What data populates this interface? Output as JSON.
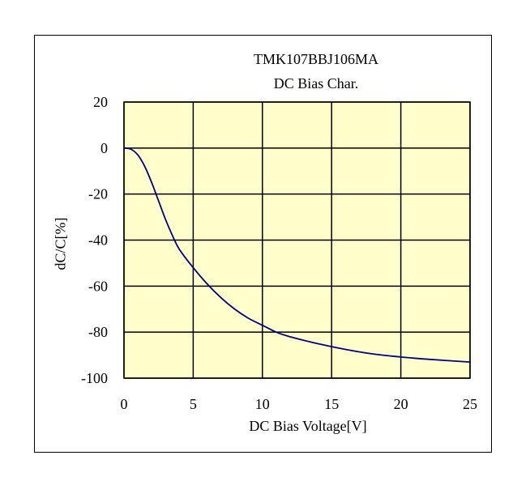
{
  "chart_data": {
    "type": "line",
    "title": "TMK107BBJ106MA",
    "subtitle": "DC Bias Char.",
    "xlabel": "DC Bias Voltage[V]",
    "ylabel": "dC/C[%]",
    "xlim": [
      0,
      25
    ],
    "ylim": [
      -100,
      20
    ],
    "xticks": [
      0,
      5,
      10,
      15,
      20,
      25
    ],
    "yticks": [
      20,
      0,
      -20,
      -40,
      -60,
      -80,
      -100
    ],
    "grid": true,
    "colors": {
      "plot_background": "#FFFFCC",
      "line": "#000080",
      "grid": "#000000"
    },
    "series": [
      {
        "x": [
          0,
          0.5,
          1,
          1.5,
          2,
          2.5,
          3,
          3.5,
          4,
          5,
          6,
          7,
          8,
          9,
          10,
          11,
          12,
          14,
          16,
          18,
          20,
          22,
          25
        ],
        "values": [
          0,
          -0.5,
          -3,
          -8,
          -15,
          -23,
          -31,
          -38,
          -44,
          -52,
          -59,
          -65,
          -70,
          -74,
          -77,
          -80,
          -82,
          -85,
          -87.5,
          -89.5,
          -90.8,
          -91.8,
          -93
        ]
      }
    ]
  }
}
